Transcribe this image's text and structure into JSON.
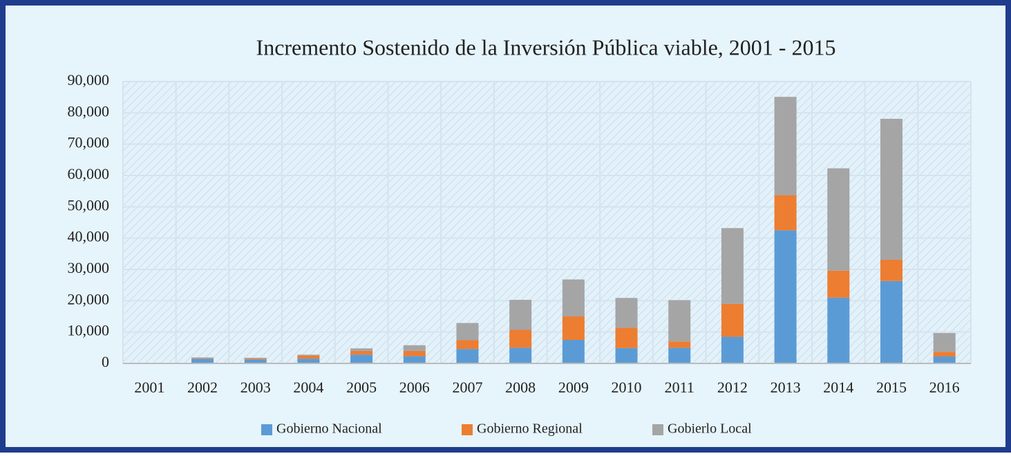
{
  "chart_data": {
    "type": "bar",
    "stacked": true,
    "title": "Incremento Sostenido de la Inversión Pública viable, 2001 - 2015",
    "categories": [
      "2001",
      "2002",
      "2003",
      "2004",
      "2005",
      "2006",
      "2007",
      "2008",
      "2009",
      "2010",
      "2011",
      "2012",
      "2013",
      "2014",
      "2015",
      "2016"
    ],
    "series": [
      {
        "name": "Gobierno Nacional",
        "color": "#5b9bd5",
        "values": [
          0,
          1500,
          1200,
          1500,
          2800,
          2300,
          4600,
          5000,
          7500,
          4900,
          5000,
          8500,
          42500,
          21000,
          26300,
          2200
        ]
      },
      {
        "name": "Gobierno Regional",
        "color": "#ed7d31",
        "values": [
          0,
          200,
          300,
          1000,
          1200,
          1700,
          2800,
          5700,
          7500,
          6500,
          2000,
          10500,
          11200,
          8600,
          6800,
          1500
        ]
      },
      {
        "name": "Gobierlo Local",
        "color": "#a5a5a5",
        "values": [
          0,
          200,
          300,
          300,
          800,
          1800,
          5500,
          9600,
          11800,
          9500,
          13200,
          24200,
          31400,
          32700,
          45000,
          6000
        ]
      }
    ],
    "ylim": [
      0,
      90000
    ],
    "yticks": [
      0,
      {
        "value": 10000,
        "label": "10,000"
      },
      {
        "value": 20000,
        "label": "20,000"
      },
      {
        "value": 30000,
        "label": "30,000"
      },
      {
        "value": 40000,
        "label": "40,000"
      },
      {
        "value": 50000,
        "label": "50,000"
      },
      {
        "value": 60000,
        "label": "60,000"
      },
      {
        "value": 70000,
        "label": "70,000"
      },
      {
        "value": 80000,
        "label": "80,000"
      },
      {
        "value": 90000,
        "label": "90,000"
      }
    ],
    "grid": true,
    "legend": "bottom"
  }
}
